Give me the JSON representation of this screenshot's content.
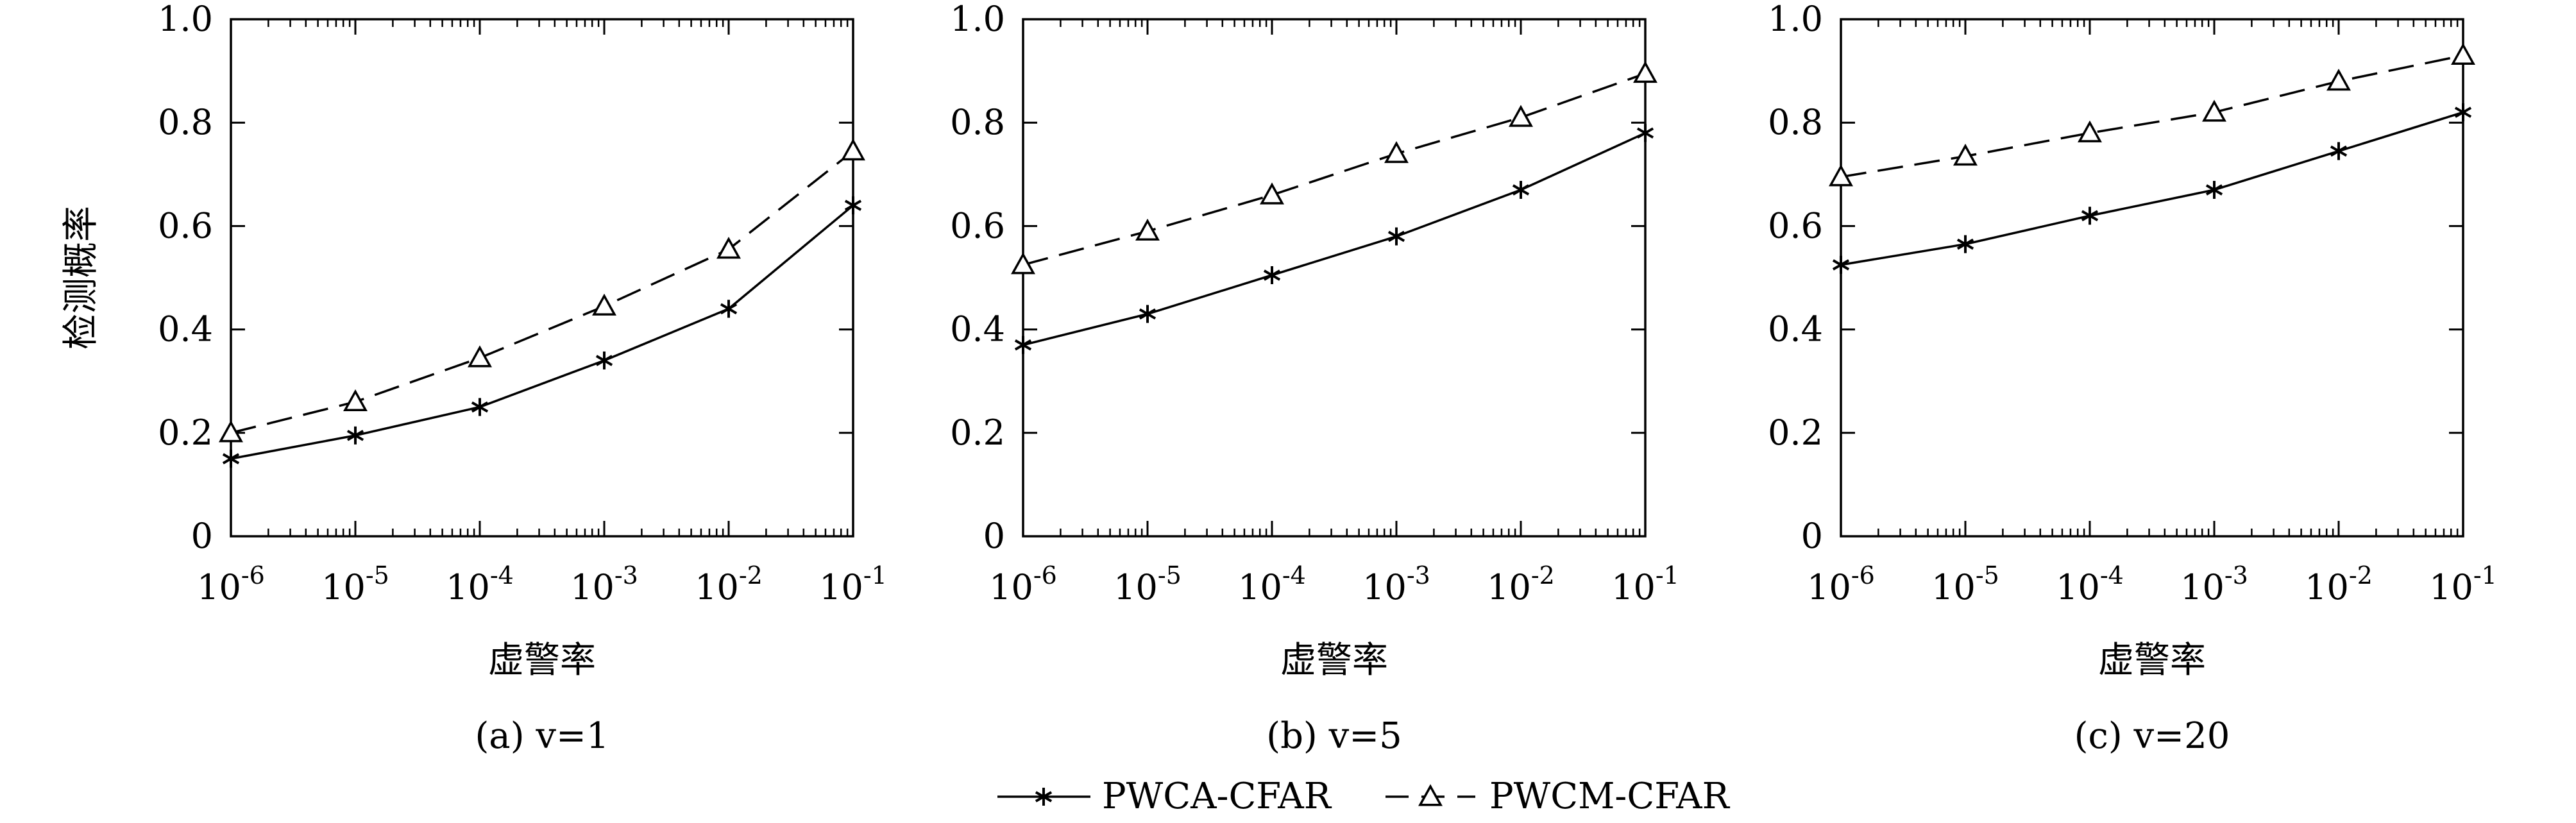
{
  "figure": {
    "legend": [
      {
        "label": "PWCA-CFAR",
        "marker": "asterisk",
        "line": "solid"
      },
      {
        "label": "PWCM-CFAR",
        "marker": "triangle",
        "line": "dashed"
      }
    ],
    "legend_placement": "bottom-center"
  },
  "chart_data": [
    {
      "type": "line",
      "caption": "(a) v=1",
      "xlabel": "虚警率",
      "ylabel": "检测概率",
      "xscale": "log",
      "xlim": [
        1e-06,
        0.1
      ],
      "ylim": [
        0,
        1.0
      ],
      "x": [
        1e-06,
        1e-05,
        0.0001,
        0.001,
        0.01,
        0.1
      ],
      "xtick_labels": [
        "10-6",
        "10-5",
        "10-4",
        "10-3",
        "10-2",
        "10-1"
      ],
      "yticks": [
        0,
        0.2,
        0.4,
        0.6,
        0.8,
        1.0
      ],
      "ytick_labels": [
        "0",
        "0.2",
        "0.4",
        "0.6",
        "0.8",
        "1.0"
      ],
      "grid": false,
      "series": [
        {
          "name": "PWCA-CFAR",
          "values": [
            0.15,
            0.195,
            0.25,
            0.34,
            0.44,
            0.64
          ]
        },
        {
          "name": "PWCM-CFAR",
          "values": [
            0.2,
            0.26,
            0.345,
            0.445,
            0.555,
            0.745
          ]
        }
      ]
    },
    {
      "type": "line",
      "caption": "(b) v=5",
      "xlabel": "虚警率",
      "ylabel": "",
      "xscale": "log",
      "xlim": [
        1e-06,
        0.1
      ],
      "ylim": [
        0,
        1.0
      ],
      "x": [
        1e-06,
        1e-05,
        0.0001,
        0.001,
        0.01,
        0.1
      ],
      "xtick_labels": [
        "10-6",
        "10-5",
        "10-4",
        "10-3",
        "10-2",
        "10-1"
      ],
      "yticks": [
        0,
        0.2,
        0.4,
        0.6,
        0.8,
        1.0
      ],
      "ytick_labels": [
        "0",
        "0.2",
        "0.4",
        "0.6",
        "0.8",
        "1.0"
      ],
      "grid": false,
      "series": [
        {
          "name": "PWCA-CFAR",
          "values": [
            0.37,
            0.43,
            0.505,
            0.58,
            0.67,
            0.78
          ]
        },
        {
          "name": "PWCM-CFAR",
          "values": [
            0.525,
            0.59,
            0.66,
            0.74,
            0.81,
            0.895
          ]
        }
      ]
    },
    {
      "type": "line",
      "caption": "(c) v=20",
      "xlabel": "虚警率",
      "ylabel": "",
      "xscale": "log",
      "xlim": [
        1e-06,
        0.1
      ],
      "ylim": [
        0,
        1.0
      ],
      "x": [
        1e-06,
        1e-05,
        0.0001,
        0.001,
        0.01,
        0.1
      ],
      "xtick_labels": [
        "10-6",
        "10-5",
        "10-4",
        "10-3",
        "10-2",
        "10-1"
      ],
      "yticks": [
        0,
        0.2,
        0.4,
        0.6,
        0.8,
        1.0
      ],
      "ytick_labels": [
        "0",
        "0.2",
        "0.4",
        "0.6",
        "0.8",
        "1.0"
      ],
      "grid": false,
      "series": [
        {
          "name": "PWCA-CFAR",
          "values": [
            0.525,
            0.565,
            0.62,
            0.67,
            0.745,
            0.82
          ]
        },
        {
          "name": "PWCM-CFAR",
          "values": [
            0.695,
            0.735,
            0.78,
            0.82,
            0.88,
            0.93
          ]
        }
      ]
    }
  ]
}
